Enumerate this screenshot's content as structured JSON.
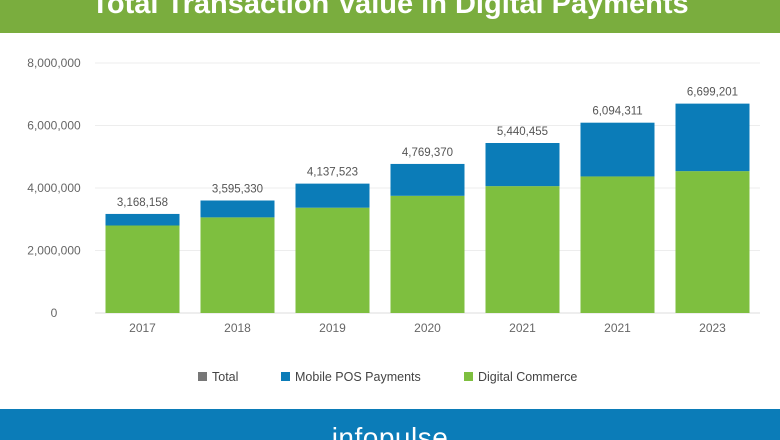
{
  "header": {
    "title": "Total Transaction Value in Digital Payments"
  },
  "footer": {
    "brand": "infopulse"
  },
  "colors": {
    "title_bg": "#7aad3e",
    "footer_bg": "#0b7cb8",
    "digital_commerce": "#7ebf3f",
    "mobile_pos": "#0b7cb8",
    "total": "#777777"
  },
  "chart_data": {
    "type": "bar",
    "stacked": true,
    "title": "Total Transaction Value in Digital Payments",
    "xlabel": "",
    "ylabel": "",
    "categories": [
      "2017",
      "2018",
      "2019",
      "2020",
      "2021",
      "2021",
      "2023"
    ],
    "series": [
      {
        "name": "Total",
        "values": [
          3168158,
          3595330,
          4137523,
          4769370,
          5440455,
          6094311,
          6699201
        ]
      },
      {
        "name": "Mobile POS Payments",
        "values": [
          370000,
          540000,
          770000,
          1020000,
          1380000,
          1720000,
          2160000
        ]
      },
      {
        "name": "Digital Commerce",
        "values": [
          2800000,
          3060000,
          3370000,
          3750000,
          4060000,
          4370000,
          4540000
        ]
      }
    ],
    "data_labels": [
      "3,168,158",
      "3,595,330",
      "4,137,523",
      "4,769,370",
      "5,440,455",
      "6,094,311",
      "6,699,201"
    ],
    "y_ticks": [
      "0",
      "2,000,000",
      "4,000,000",
      "6,000,000",
      "8,000,000"
    ],
    "ylim": [
      0,
      8000000
    ],
    "grid": true,
    "legend_position": "bottom",
    "legend": [
      "Total",
      "Mobile POS Payments",
      "Digital Commerce"
    ]
  }
}
